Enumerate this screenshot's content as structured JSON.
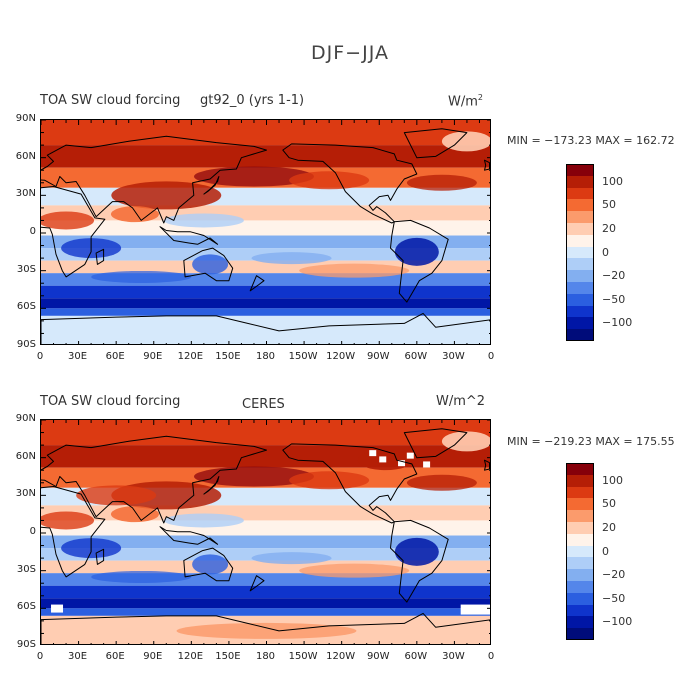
{
  "figure": {
    "title": "DJF−JJA"
  },
  "panels": [
    {
      "title": "TOA SW cloud forcing",
      "subtitle": "gt92_0 (yrs 1-1)",
      "units": "W/m",
      "units_sup": "2",
      "stats": "MIN = −173.23 MAX = 162.72",
      "colors": [
        "#86000a",
        "#b51e06",
        "#dc3a12",
        "#f46a32",
        "#fb9b6c",
        "#ffcdb2",
        "#fff3ea",
        "#d6e9fb",
        "#aecef7",
        "#83aff0",
        "#5486ea",
        "#2b5fe0",
        "#0f34cc",
        "#0016a6",
        "#000c7a"
      ],
      "legend_labels": [
        "100",
        "50",
        "20",
        "0",
        "−20",
        "−50",
        "−100"
      ]
    },
    {
      "title": "TOA SW cloud forcing",
      "subtitle": "CERES",
      "units": "W/m^2",
      "units_sup": "",
      "stats": "MIN = −219.23 MAX = 175.55",
      "colors": [
        "#86000a",
        "#b51e06",
        "#dc3a12",
        "#f46a32",
        "#fb9b6c",
        "#ffcdb2",
        "#fff3ea",
        "#d6e9fb",
        "#aecef7",
        "#83aff0",
        "#5486ea",
        "#2b5fe0",
        "#0f34cc",
        "#0016a6",
        "#000c7a"
      ],
      "legend_labels": [
        "100",
        "50",
        "20",
        "0",
        "−20",
        "−50",
        "−100"
      ]
    }
  ],
  "axes": {
    "lat_labels": [
      "90N",
      "60N",
      "30N",
      "0",
      "30S",
      "60S",
      "90S"
    ],
    "lon_labels": [
      "0",
      "30E",
      "60E",
      "90E",
      "120E",
      "150E",
      "180",
      "150W",
      "120W",
      "90W",
      "60W",
      "30W",
      "0"
    ]
  }
}
